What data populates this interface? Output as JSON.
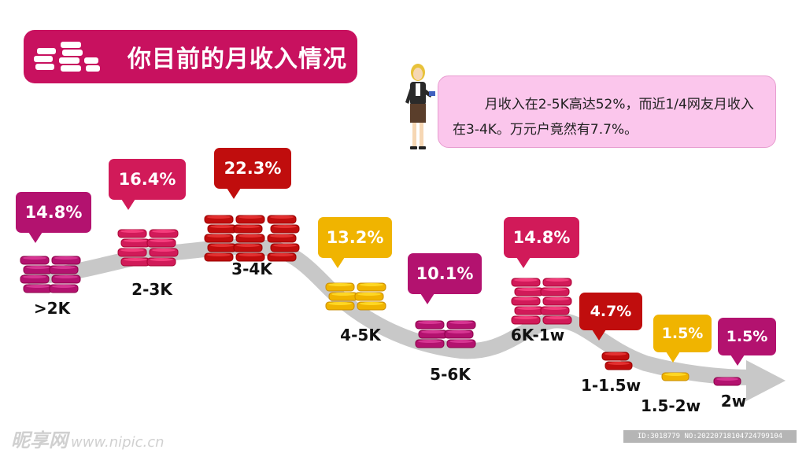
{
  "title": {
    "text": "你目前的月收入情况"
  },
  "note": {
    "text": "月收入在2-5K高达52%，而近1/4网友月收入在3-4K。万元户竟然有7.7%。"
  },
  "colors": {
    "magenta": "#b3126f",
    "pink": "#d11a59",
    "red": "#c00d0d",
    "yellow": "#f0b400",
    "title": "#c8115f",
    "arrow": "#c8c8c8",
    "note_bg": "#fbc6ec"
  },
  "chart_data": {
    "type": "bar",
    "categories": [
      ">2K",
      "2-3K",
      "3-4K",
      "4-5K",
      "5-6K",
      "6K-1w",
      "1-1.5w",
      "1.5-2w",
      "2w"
    ],
    "values": [
      14.8,
      16.4,
      22.3,
      13.2,
      10.1,
      14.8,
      4.7,
      1.5,
      1.5
    ],
    "value_labels": [
      "14.8%",
      "16.4%",
      "22.3%",
      "13.2%",
      "10.1%",
      "14.8%",
      "4.7%",
      "1.5%",
      "1.5%"
    ],
    "series_colors": [
      "magenta",
      "pink",
      "red",
      "yellow",
      "magenta",
      "pink",
      "red",
      "yellow",
      "magenta"
    ],
    "unit": "%"
  },
  "watermark": {
    "brand": "昵享网",
    "url": "www.nipic.cn"
  },
  "image_id": "ID:3018779 NO:20220718104724799104"
}
